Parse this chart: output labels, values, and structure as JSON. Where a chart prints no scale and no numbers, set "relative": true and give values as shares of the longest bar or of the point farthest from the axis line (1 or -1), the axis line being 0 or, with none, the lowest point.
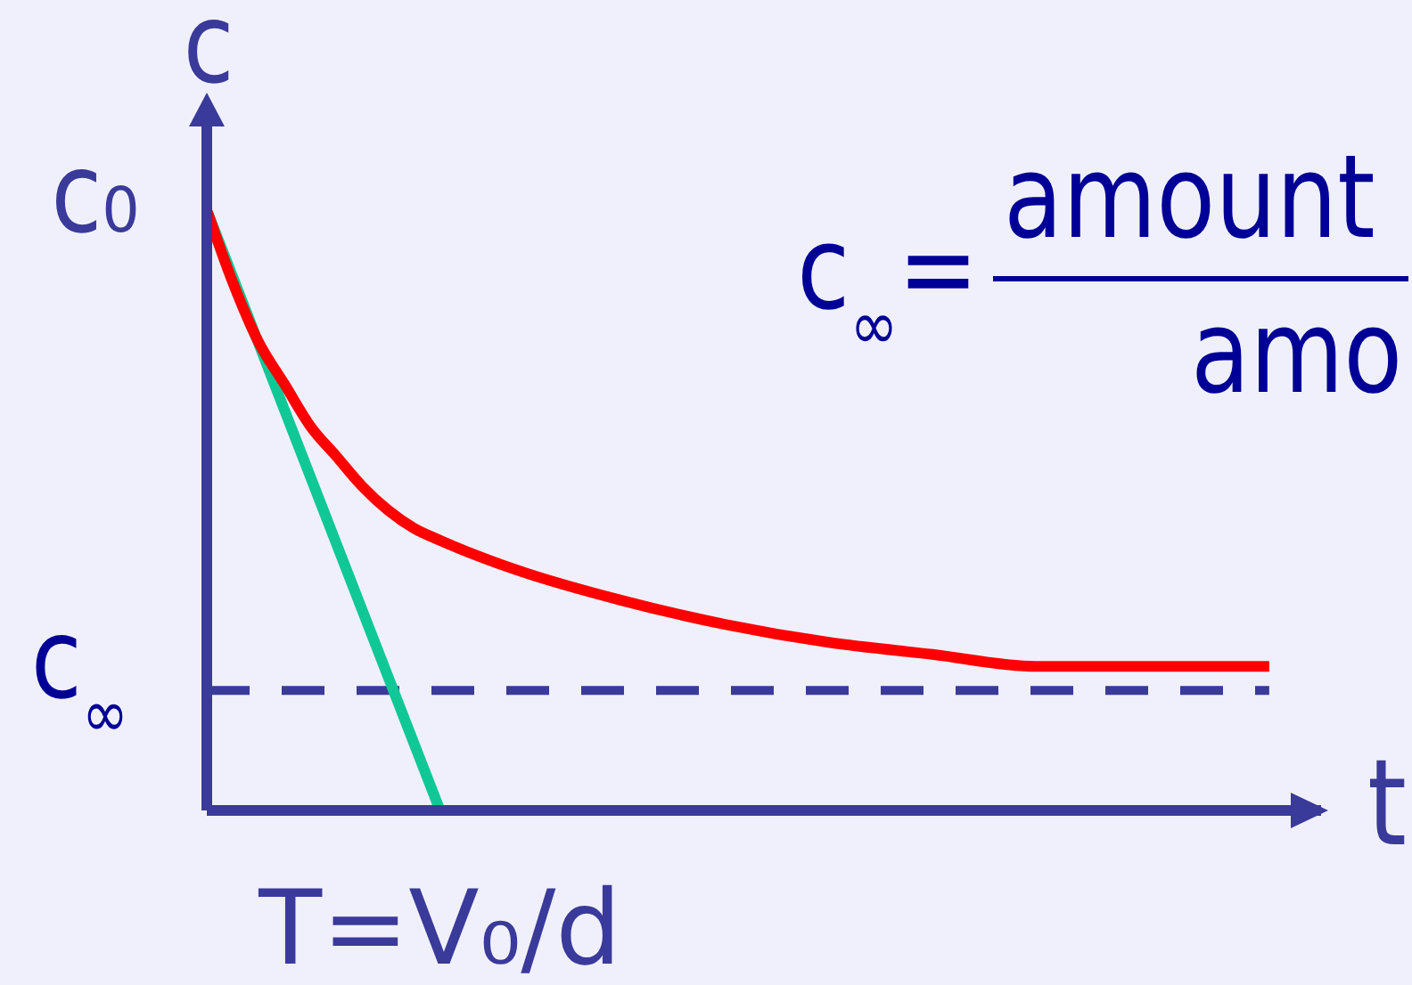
{
  "chart_data": {
    "type": "line",
    "ylabel": "c",
    "xlabel": "t",
    "relative": true,
    "categories": [
      null,
      null,
      null,
      null,
      null,
      null,
      null,
      null,
      null,
      null,
      null,
      null,
      null,
      null,
      null,
      null,
      null,
      null,
      null,
      null,
      null,
      null,
      null,
      null,
      null,
      null,
      null,
      null,
      null,
      null,
      null,
      null,
      null,
      null,
      null,
      null,
      null,
      null,
      null,
      null,
      null,
      null,
      null,
      null
    ],
    "series": [
      {
        "color": "#10c896",
        "values": [
          1,
          null,
          null,
          null,
          null,
          null,
          null,
          null,
          null,
          0,
          null,
          null,
          null,
          null,
          null,
          null,
          null,
          null,
          null,
          null,
          null,
          null,
          null,
          null,
          null,
          null,
          null,
          null,
          null,
          null,
          null,
          null,
          null,
          null,
          null,
          null,
          null,
          null,
          null,
          null,
          null,
          null,
          null,
          null
        ]
      },
      {
        "color": "#ff0000",
        "values": [
          1,
          0.88,
          0.78,
          0.71,
          0.64,
          0.59,
          0.54,
          0.5,
          0.47,
          0.45,
          null,
          null,
          0.4,
          null,
          null,
          null,
          0.35,
          null,
          null,
          null,
          0.31,
          null,
          null,
          null,
          0.28,
          null,
          null,
          null,
          0.26,
          null,
          null,
          null,
          0.24,
          null,
          null,
          null,
          0.24,
          null,
          null,
          0.24,
          null,
          0.24,
          null,
          null
        ]
      }
    ],
    "ref_lines": [
      {
        "axis": "y",
        "value": 0.2,
        "label": "c$_{∞}$",
        "color": "#3a3a9a",
        "line_style": "dashed"
      }
    ],
    "annotations": [
      "c₀",
      {
        "text": "T=V₀/d",
        "y": 0
      },
      "c$_{∞}$=",
      "amount",
      "amo"
    ],
    "marker": "none",
    "line_style": "solid"
  }
}
